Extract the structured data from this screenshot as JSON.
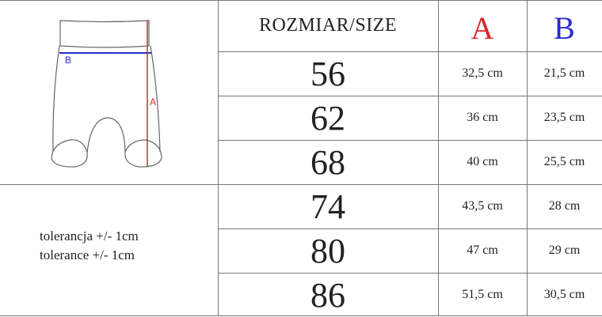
{
  "header": {
    "size_label": "ROZMIAR/SIZE",
    "col_a": "A",
    "col_b": "B"
  },
  "colors": {
    "a": "#d8262b",
    "b": "#2a2ad0"
  },
  "diagram": {
    "label_a": "A",
    "label_b": "B"
  },
  "tolerance": [
    "tolerancja +/- 1cm",
    "tolerance +/- 1cm"
  ],
  "rows": [
    {
      "size": "56",
      "a": "32,5 cm",
      "b": "21,5 cm"
    },
    {
      "size": "62",
      "a": "36 cm",
      "b": "23,5 cm"
    },
    {
      "size": "68",
      "a": "40 cm",
      "b": "25,5 cm"
    },
    {
      "size": "74",
      "a": "43,5 cm",
      "b": "28 cm"
    },
    {
      "size": "80",
      "a": "47 cm",
      "b": "29 cm"
    },
    {
      "size": "86",
      "a": "51,5 cm",
      "b": "30,5 cm"
    }
  ]
}
